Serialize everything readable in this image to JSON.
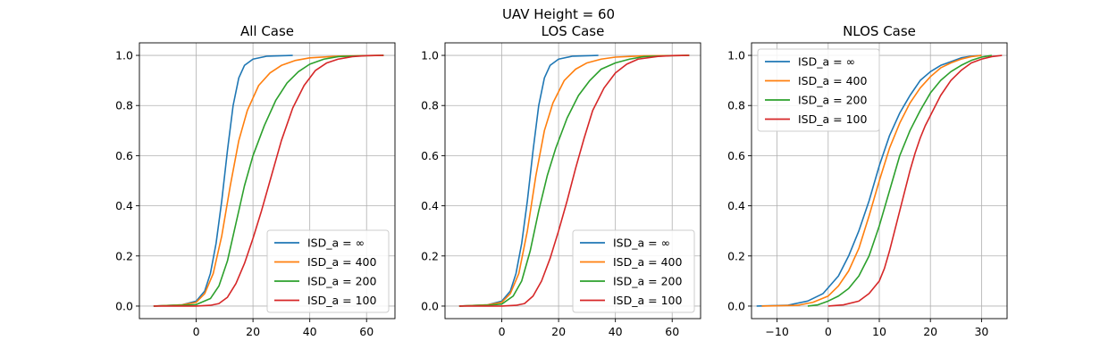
{
  "figure": {
    "suptitle": "UAV Height = 60"
  },
  "colors": {
    "series": [
      "#1f77b4",
      "#ff7f0e",
      "#2ca02c",
      "#d62728"
    ],
    "grid": "#b0b0b0"
  },
  "chart_data": [
    {
      "type": "line",
      "title": "All Case",
      "xlabel": "",
      "ylabel": "",
      "xlim": [
        -20,
        70
      ],
      "ylim": [
        -0.05,
        1.05
      ],
      "xticks": [
        0,
        20,
        40,
        60
      ],
      "xtick_labels": [
        "0",
        "20",
        "40",
        "60"
      ],
      "yticks": [
        0.0,
        0.2,
        0.4,
        0.6,
        0.8,
        1.0
      ],
      "ytick_labels": [
        "0.0",
        "0.2",
        "0.4",
        "0.6",
        "0.8",
        "1.0"
      ],
      "grid": true,
      "legend_position": "lower-right",
      "series": [
        {
          "name": "ISD_a = ∞",
          "x": [
            -15,
            -5,
            0,
            3,
            5,
            7,
            9,
            11,
            13,
            15,
            17,
            20,
            25,
            34
          ],
          "y": [
            0.0,
            0.005,
            0.02,
            0.06,
            0.13,
            0.25,
            0.42,
            0.62,
            0.8,
            0.91,
            0.96,
            0.985,
            0.997,
            1.0
          ]
        },
        {
          "name": "ISD_a = 400",
          "x": [
            -15,
            -5,
            0,
            3,
            6,
            9,
            12,
            15,
            18,
            22,
            26,
            30,
            35,
            40,
            50,
            66
          ],
          "y": [
            0.0,
            0.005,
            0.015,
            0.05,
            0.13,
            0.28,
            0.48,
            0.66,
            0.78,
            0.88,
            0.93,
            0.96,
            0.98,
            0.99,
            0.997,
            1.0
          ]
        },
        {
          "name": "ISD_a = 200",
          "x": [
            -15,
            -5,
            0,
            5,
            8,
            11,
            14,
            17,
            20,
            24,
            28,
            32,
            36,
            40,
            45,
            50,
            60,
            66
          ],
          "y": [
            0.0,
            0.003,
            0.006,
            0.03,
            0.08,
            0.18,
            0.33,
            0.48,
            0.6,
            0.72,
            0.82,
            0.89,
            0.935,
            0.965,
            0.985,
            0.995,
            0.999,
            1.0
          ]
        },
        {
          "name": "ISD_a = 100",
          "x": [
            -15,
            0,
            5,
            8,
            11,
            14,
            17,
            20,
            23,
            26,
            30,
            34,
            38,
            42,
            46,
            50,
            55,
            60,
            66
          ],
          "y": [
            0.0,
            0.0,
            0.003,
            0.01,
            0.035,
            0.09,
            0.17,
            0.27,
            0.38,
            0.5,
            0.66,
            0.79,
            0.88,
            0.94,
            0.97,
            0.985,
            0.995,
            0.999,
            1.0
          ]
        }
      ]
    },
    {
      "type": "line",
      "title": "LOS Case",
      "xlabel": "",
      "ylabel": "",
      "xlim": [
        -20,
        70
      ],
      "ylim": [
        -0.05,
        1.05
      ],
      "xticks": [
        0,
        20,
        40,
        60
      ],
      "xtick_labels": [
        "0",
        "20",
        "40",
        "60"
      ],
      "yticks": [
        0.0,
        0.2,
        0.4,
        0.6,
        0.8,
        1.0
      ],
      "ytick_labels": [
        "0.0",
        "0.2",
        "0.4",
        "0.6",
        "0.8",
        "1.0"
      ],
      "grid": true,
      "legend_position": "lower-right",
      "series": [
        {
          "name": "ISD_a = ∞",
          "x": [
            -15,
            -5,
            0,
            3,
            5,
            7,
            9,
            11,
            13,
            15,
            17,
            20,
            25,
            34
          ],
          "y": [
            0.0,
            0.005,
            0.02,
            0.06,
            0.13,
            0.25,
            0.42,
            0.62,
            0.8,
            0.91,
            0.96,
            0.985,
            0.997,
            1.0
          ]
        },
        {
          "name": "ISD_a = 400",
          "x": [
            -15,
            -5,
            0,
            3,
            6,
            9,
            12,
            15,
            18,
            22,
            26,
            30,
            35,
            40,
            50,
            66
          ],
          "y": [
            0.0,
            0.005,
            0.015,
            0.05,
            0.13,
            0.3,
            0.52,
            0.7,
            0.81,
            0.9,
            0.945,
            0.97,
            0.985,
            0.993,
            0.998,
            1.0
          ]
        },
        {
          "name": "ISD_a = 200",
          "x": [
            -15,
            -5,
            0,
            4,
            7,
            10,
            13,
            16,
            19,
            23,
            27,
            31,
            35,
            40,
            45,
            50,
            60,
            66
          ],
          "y": [
            0.0,
            0.003,
            0.008,
            0.04,
            0.1,
            0.22,
            0.38,
            0.52,
            0.63,
            0.75,
            0.84,
            0.9,
            0.945,
            0.97,
            0.985,
            0.995,
            0.999,
            1.0
          ]
        },
        {
          "name": "ISD_a = 100",
          "x": [
            -15,
            0,
            5,
            8,
            11,
            14,
            17,
            20,
            23,
            26,
            29,
            32,
            36,
            40,
            44,
            48,
            55,
            60,
            66
          ],
          "y": [
            0.0,
            0.0,
            0.003,
            0.01,
            0.04,
            0.1,
            0.19,
            0.3,
            0.42,
            0.55,
            0.67,
            0.78,
            0.87,
            0.93,
            0.965,
            0.985,
            0.996,
            0.999,
            1.0
          ]
        }
      ]
    },
    {
      "type": "line",
      "title": "NLOS Case",
      "xlabel": "",
      "ylabel": "",
      "xlim": [
        -15,
        35
      ],
      "ylim": [
        -0.05,
        1.05
      ],
      "xticks": [
        -10,
        0,
        10,
        20,
        30
      ],
      "xtick_labels": [
        "−10",
        "0",
        "10",
        "20",
        "30"
      ],
      "yticks": [
        0.0,
        0.2,
        0.4,
        0.6,
        0.8,
        1.0
      ],
      "ytick_labels": [
        "0.0",
        "0.2",
        "0.4",
        "0.6",
        "0.8",
        "1.0"
      ],
      "grid": true,
      "legend_position": "upper-left",
      "series": [
        {
          "name": "ISD_a = ∞",
          "x": [
            -14,
            -8,
            -4,
            -1,
            2,
            4,
            6,
            8,
            10,
            12,
            14,
            16,
            18,
            20,
            22,
            24,
            26,
            28,
            30
          ],
          "y": [
            0.0,
            0.003,
            0.02,
            0.05,
            0.12,
            0.2,
            0.3,
            0.42,
            0.56,
            0.68,
            0.77,
            0.84,
            0.9,
            0.935,
            0.96,
            0.975,
            0.99,
            0.997,
            1.0
          ]
        },
        {
          "name": "ISD_a = 400",
          "x": [
            -13,
            -6,
            -3,
            0,
            2,
            4,
            6,
            8,
            10,
            12,
            14,
            16,
            18,
            20,
            22,
            24,
            26,
            28,
            30
          ],
          "y": [
            0.0,
            0.003,
            0.015,
            0.04,
            0.08,
            0.14,
            0.23,
            0.36,
            0.5,
            0.63,
            0.73,
            0.81,
            0.87,
            0.915,
            0.95,
            0.97,
            0.985,
            0.995,
            1.0
          ]
        },
        {
          "name": "ISD_a = 200",
          "x": [
            -4,
            -2,
            0,
            2,
            4,
            6,
            8,
            10,
            12,
            14,
            16,
            18,
            20,
            22,
            24,
            26,
            28,
            30,
            32
          ],
          "y": [
            0.0,
            0.005,
            0.02,
            0.04,
            0.07,
            0.12,
            0.2,
            0.32,
            0.46,
            0.6,
            0.7,
            0.78,
            0.85,
            0.9,
            0.935,
            0.96,
            0.98,
            0.993,
            1.0
          ]
        },
        {
          "name": "ISD_a = 100",
          "x": [
            0,
            3,
            6,
            8,
            10,
            11,
            12,
            13,
            14,
            15,
            16,
            17,
            18,
            19,
            20,
            22,
            24,
            26,
            28,
            30,
            32,
            34
          ],
          "y": [
            0.0,
            0.005,
            0.02,
            0.05,
            0.1,
            0.15,
            0.22,
            0.3,
            0.38,
            0.46,
            0.54,
            0.61,
            0.67,
            0.72,
            0.76,
            0.84,
            0.9,
            0.94,
            0.97,
            0.985,
            0.995,
            1.0
          ]
        }
      ]
    }
  ]
}
